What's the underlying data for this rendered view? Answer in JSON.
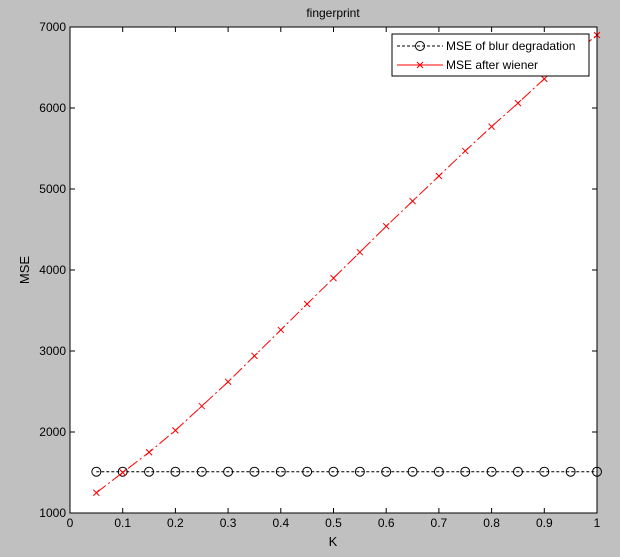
{
  "chart_data": {
    "type": "line",
    "title": "fingerprint",
    "xlabel": "K",
    "ylabel": "MSE",
    "xlim": [
      0,
      1
    ],
    "ylim": [
      1000,
      7000
    ],
    "xticks": [
      "0",
      "0.1",
      "0.2",
      "0.3",
      "0.4",
      "0.5",
      "0.6",
      "0.7",
      "0.8",
      "0.9",
      "1"
    ],
    "yticks": [
      "1000",
      "2000",
      "3000",
      "4000",
      "5000",
      "6000",
      "7000"
    ],
    "x": [
      0.05,
      0.1,
      0.15,
      0.2,
      0.25,
      0.3,
      0.35,
      0.4,
      0.45,
      0.5,
      0.55,
      0.6,
      0.65,
      0.7,
      0.75,
      0.8,
      0.85,
      0.9,
      0.95,
      1.0
    ],
    "legend_position": "top-right",
    "grid": false,
    "series": [
      {
        "name": "MSE of blur degradation",
        "color": "#000000",
        "line_style": "dashed",
        "marker": "circle",
        "values": [
          1510,
          1510,
          1510,
          1510,
          1510,
          1510,
          1510,
          1510,
          1510,
          1510,
          1510,
          1510,
          1510,
          1510,
          1510,
          1510,
          1510,
          1510,
          1510,
          1510
        ]
      },
      {
        "name": "MSE after wiener",
        "color": "#ff0000",
        "line_style": "dash-dot",
        "marker": "x",
        "values": [
          1250,
          1500,
          1750,
          2020,
          2320,
          2620,
          2940,
          3260,
          3580,
          3900,
          4220,
          4540,
          4850,
          5160,
          5470,
          5770,
          6060,
          6360,
          6640,
          6900
        ]
      }
    ]
  }
}
